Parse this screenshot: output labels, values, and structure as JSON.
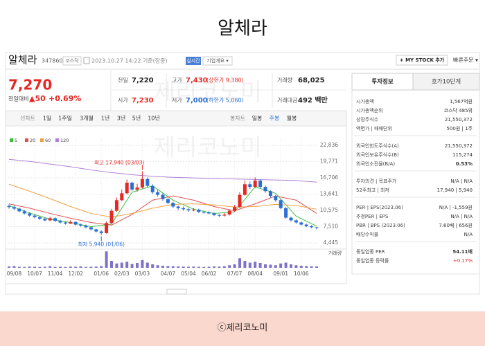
{
  "page_title": "알체라",
  "stock": {
    "name": "알체라",
    "code": "347860",
    "market": "코스닥",
    "time": "2023.10.27 14:22 기준(장중)",
    "realtime": "실시간",
    "overview": "기업개요 ▾",
    "mystock": "+ MY STOCK 추가",
    "quick_order": "빠른주문 ▾"
  },
  "price": {
    "current": "7,270",
    "change_label": "전일대비",
    "change": "▲50",
    "change_pct": "+0.69%",
    "color": "#e22926"
  },
  "summary": [
    [
      {
        "label": "전일",
        "value": "7,220",
        "color": "#222222"
      },
      {
        "label": "고가",
        "value": "7,430",
        "note": "(상한가 9,380)",
        "color": "#e22926"
      },
      {
        "label": "거래량",
        "value": "68,025",
        "color": "#222222"
      }
    ],
    [
      {
        "label": "시가",
        "value": "7,230",
        "color": "#e22926"
      },
      {
        "label": "저가",
        "value": "7,000",
        "note": "(하한가 5,060)",
        "color": "#2b6fd4"
      },
      {
        "label": "거래대금",
        "value": "492 백만",
        "color": "#222222"
      }
    ]
  ],
  "line_tabs": [
    "선차트",
    "1일",
    "1주일",
    "3개월",
    "1년",
    "3년",
    "5년",
    "10년"
  ],
  "candle_tabs": [
    "봉차트",
    "일봉",
    "주봉",
    "월봉"
  ],
  "chart_data": {
    "type": "candlestick",
    "categories": [
      null,
      "09/08",
      null,
      null,
      null,
      "10/07",
      null,
      null,
      null,
      "11/04",
      null,
      null,
      null,
      "12/02",
      null,
      null,
      null,
      null,
      "01/06",
      null,
      null,
      null,
      "02/03",
      null,
      null,
      null,
      "03/03",
      null,
      null,
      null,
      null,
      "04/07",
      null,
      null,
      null,
      "05/04",
      null,
      null,
      null,
      "06/02",
      null,
      null,
      null,
      null,
      "07/07",
      null,
      null,
      null,
      "08/04",
      null,
      null,
      null,
      null,
      "09/01",
      null,
      null,
      null,
      "10/06",
      null,
      null,
      null
    ],
    "open": [
      11400,
      11200,
      10900,
      10400,
      10000,
      9600,
      9300,
      9000,
      8700,
      9100,
      8600,
      8300,
      8100,
      8400,
      7900,
      7700,
      7400,
      7000,
      6600,
      6300,
      8200,
      10500,
      12500,
      13800,
      15800,
      14500,
      14900,
      16500,
      15200,
      14000,
      13500,
      12700,
      12000,
      11300,
      11000,
      10800,
      10600,
      10700,
      10300,
      10200,
      10000,
      9700,
      9600,
      9800,
      10500,
      11200,
      13500,
      15500,
      15000,
      16200,
      15000,
      14200,
      13300,
      12500,
      11000,
      9200,
      8700,
      8300,
      7900,
      7600,
      7400
    ],
    "high": [
      11700,
      11500,
      11100,
      10700,
      10200,
      9900,
      9500,
      9200,
      9400,
      9300,
      8800,
      8500,
      8700,
      8500,
      8100,
      7900,
      7500,
      7100,
      6800,
      8500,
      10900,
      13000,
      14500,
      16400,
      16000,
      15600,
      17940,
      16800,
      15500,
      14400,
      13800,
      12900,
      12200,
      11500,
      11300,
      11000,
      11000,
      10900,
      10500,
      10400,
      10200,
      9900,
      10100,
      10800,
      11600,
      14000,
      16200,
      16000,
      16800,
      16400,
      15300,
      14400,
      13500,
      12700,
      11200,
      9400,
      8900,
      8500,
      8100,
      7800,
      7430
    ],
    "low": [
      10900,
      10600,
      10200,
      9800,
      9400,
      9100,
      8800,
      8500,
      8500,
      8400,
      8100,
      7900,
      8000,
      7700,
      7500,
      7200,
      6800,
      6400,
      5940,
      6200,
      8100,
      10300,
      12300,
      13600,
      14200,
      14100,
      14700,
      14900,
      13700,
      13200,
      12400,
      11700,
      11000,
      10700,
      10500,
      10300,
      10400,
      10100,
      9900,
      9800,
      9500,
      9300,
      9400,
      9600,
      10300,
      11000,
      13300,
      14600,
      14800,
      14700,
      13900,
      13000,
      12200,
      10800,
      9000,
      8500,
      8100,
      7700,
      7400,
      7200,
      7000
    ],
    "close": [
      11200,
      10900,
      10400,
      10000,
      9600,
      9300,
      9000,
      8700,
      9100,
      8600,
      8300,
      8100,
      8400,
      7900,
      7700,
      7400,
      7000,
      6600,
      6300,
      8200,
      10500,
      12500,
      13800,
      15800,
      14500,
      14900,
      16500,
      15200,
      14000,
      13500,
      12700,
      12000,
      11300,
      11000,
      10800,
      10600,
      10700,
      10300,
      10200,
      10000,
      9700,
      9600,
      9800,
      10500,
      11200,
      13500,
      15500,
      15000,
      16200,
      15000,
      14200,
      13300,
      12500,
      11000,
      9200,
      8700,
      8300,
      7900,
      7600,
      7400,
      7270
    ],
    "volume": [
      8,
      10,
      6,
      5,
      7,
      6,
      5,
      6,
      9,
      5,
      6,
      5,
      7,
      6,
      8,
      5,
      6,
      7,
      10,
      95,
      40,
      25,
      30,
      35,
      22,
      28,
      45,
      30,
      20,
      15,
      12,
      10,
      9,
      8,
      7,
      6,
      7,
      6,
      5,
      6,
      8,
      7,
      9,
      15,
      20,
      55,
      40,
      30,
      35,
      28,
      20,
      18,
      15,
      25,
      30,
      20,
      15,
      12,
      10,
      9,
      8
    ],
    "volume_label": "거래량",
    "up_color": "#e22926",
    "down_color": "#2b6fd4",
    "volume_color": "#7b74c9",
    "ma": [
      {
        "name": "5",
        "color": "#3dbd3d",
        "x": [
          0,
          4,
          8,
          12,
          16,
          20,
          24,
          28,
          32,
          36,
          40,
          44,
          48,
          52,
          56,
          60
        ],
        "values": [
          11500,
          10100,
          8900,
          8300,
          7500,
          8000,
          14000,
          15200,
          12500,
          10800,
          10000,
          10300,
          15000,
          13800,
          9500,
          7600
        ]
      },
      {
        "name": "20",
        "color": "#e05050",
        "x": [
          0,
          4,
          8,
          12,
          16,
          20,
          24,
          28,
          32,
          36,
          40,
          44,
          48,
          52,
          56,
          60
        ],
        "values": [
          11800,
          11000,
          10000,
          9100,
          8300,
          7800,
          9800,
          12500,
          13300,
          12500,
          11300,
          10500,
          11800,
          13300,
          12500,
          10000
        ]
      },
      {
        "name": "60",
        "color": "#f0a040",
        "x": [
          0,
          4,
          8,
          12,
          16,
          20,
          24,
          28,
          32,
          36,
          40,
          44,
          48,
          52,
          56,
          60
        ],
        "values": [
          15500,
          14200,
          12800,
          11300,
          10000,
          9300,
          10000,
          11000,
          11700,
          11800,
          11600,
          11200,
          11300,
          11700,
          11500,
          10800
        ]
      },
      {
        "name": "120",
        "color": "#b080d8",
        "x": [
          0,
          4,
          8,
          12,
          16,
          20,
          24,
          28,
          32,
          36,
          40,
          44,
          48,
          52,
          56,
          60
        ],
        "values": [
          20200,
          19800,
          19300,
          18800,
          18200,
          17700,
          17300,
          17000,
          16800,
          16700,
          16600,
          16500,
          16400,
          16300,
          16200,
          15900
        ]
      }
    ],
    "annotations": [
      {
        "text": "최고 17,940 (03/03)",
        "x": 26,
        "value": 17940,
        "color": "#e22926"
      },
      {
        "text": "최저 5,940 (01/06)",
        "x": 18,
        "value": 5940,
        "color": "#2b6fd4"
      }
    ],
    "ylim": [
      3670,
      24140
    ],
    "yticks": [
      {
        "value": 22836,
        "label": "22,836"
      },
      {
        "value": 19771,
        "label": "19,771"
      },
      {
        "value": 16706,
        "label": "16,706"
      },
      {
        "value": 13641,
        "label": "13,641"
      },
      {
        "value": 10575,
        "label": "10,575"
      },
      {
        "value": 7510,
        "label": "7,510"
      },
      {
        "value": 4445,
        "label": "4,445"
      }
    ],
    "grid": true
  },
  "info_tabs": [
    "투자정보",
    "호가10단계"
  ],
  "info_groups": [
    [
      {
        "label": "시가총액",
        "value": "1,567억원"
      },
      {
        "label": "시가총액순위",
        "value": "코스닥 485위"
      },
      {
        "label": "상장주식수",
        "value": "21,550,372"
      },
      {
        "label": "액면가 | 매매단위",
        "value": "500원 | 1주"
      }
    ],
    [
      {
        "label": "외국인한도주식수(A)",
        "value": "21,550,372"
      },
      {
        "label": "외국인보유주식수(B)",
        "value": "115,274"
      },
      {
        "label": "외국인소진율(B/A)",
        "value": "0.53%",
        "bold": true
      }
    ],
    [
      {
        "label": "투자의견 | 목표주가",
        "value": "N/A | N/A"
      },
      {
        "label": "52주최고 | 최저",
        "value": "17,940 | 5,940"
      }
    ],
    [
      {
        "label": "PER | EPS(2023.06)",
        "value": "N/A | -1,559원"
      },
      {
        "label": "추정PER | EPS",
        "value": "N/A | N/A"
      },
      {
        "label": "PBR | BPS (2023.06)",
        "value": "7.60배 | 656원"
      },
      {
        "label": "배당수익률",
        "value": "N/A"
      }
    ],
    [
      {
        "label": "동일업종 PER",
        "value": "54.11배",
        "bold": true
      },
      {
        "label": "동일업종 등락률",
        "value": "+0.17%",
        "color": "#e22926"
      }
    ]
  ],
  "watermark": "제리코노미",
  "footer": "ⓒ제리코노미"
}
